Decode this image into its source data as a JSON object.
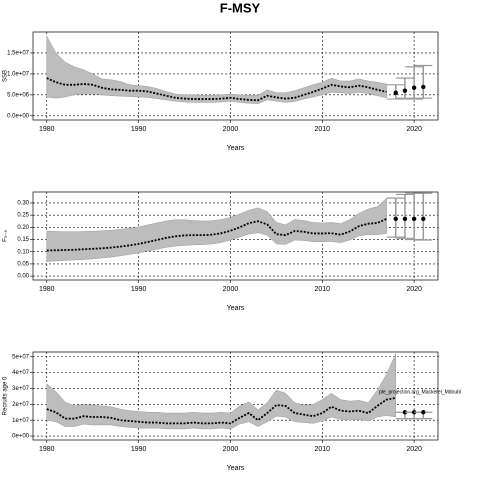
{
  "title": "F-MSY",
  "chart_data": [
    {
      "type": "line",
      "ylabel": "SSB",
      "xlabel": "Years",
      "grid": true,
      "color": "#000000",
      "band_color": "#bdbdbd",
      "xlim": [
        1978.5,
        2022.6
      ],
      "xticks": [
        1980,
        1990,
        2000,
        2010,
        2020
      ],
      "ylim": [
        -1000000.0,
        20000000.0
      ],
      "yticks": [
        {
          "value": 0,
          "label": "0.0e+00"
        },
        {
          "value": 5000000.0,
          "label": "5.0e+06"
        },
        {
          "value": 10000000.0,
          "label": "1.0e+07"
        },
        {
          "value": 15000000.0,
          "label": "1.5e+07"
        }
      ],
      "x": [
        1980,
        1981,
        1982,
        1983,
        1984,
        1985,
        1986,
        1987,
        1988,
        1989,
        1990,
        1991,
        1992,
        1993,
        1994,
        1995,
        1996,
        1997,
        1998,
        1999,
        2000,
        2001,
        2002,
        2003,
        2004,
        2005,
        2006,
        2007,
        2008,
        2009,
        2010,
        2011,
        2012,
        2013,
        2014,
        2015,
        2016,
        2017
      ],
      "values": [
        9000000.0,
        8000000.0,
        7400000.0,
        7400000.0,
        7600000.0,
        7400000.0,
        6700000.0,
        6300000.0,
        6200000.0,
        6000000.0,
        6000000.0,
        5800000.0,
        5300000.0,
        4800000.0,
        4300000.0,
        4100000.0,
        4000000.0,
        4000000.0,
        4000000.0,
        4100000.0,
        4300000.0,
        4000000.0,
        3800000.0,
        3700000.0,
        4800000.0,
        4400000.0,
        4100000.0,
        4300000.0,
        5000000.0,
        5700000.0,
        6500000.0,
        7400000.0,
        7000000.0,
        6800000.0,
        7200000.0,
        6800000.0,
        6200000.0,
        5700000.0
      ],
      "upper": [
        19000000.0,
        15000000.0,
        12800000.0,
        11700000.0,
        11000000.0,
        10000000.0,
        8800000.0,
        8600000.0,
        8200000.0,
        7400000.0,
        7200000.0,
        7000000.0,
        6500000.0,
        5800000.0,
        5200000.0,
        5000000.0,
        5000000.0,
        4900000.0,
        4900000.0,
        5000000.0,
        5200000.0,
        5000000.0,
        4900000.0,
        4900000.0,
        6200000.0,
        5500000.0,
        5500000.0,
        6000000.0,
        6700000.0,
        7400000.0,
        8000000.0,
        9000000.0,
        8300000.0,
        8300000.0,
        8800000.0,
        8300000.0,
        8000000.0,
        7600000.0
      ],
      "lower": [
        4500000.0,
        4200000.0,
        4500000.0,
        5000000.0,
        5200000.0,
        5200000.0,
        5000000.0,
        4800000.0,
        4700000.0,
        4600000.0,
        4500000.0,
        4400000.0,
        4100000.0,
        3800000.0,
        3500000.0,
        3300000.0,
        3200000.0,
        3200000.0,
        3200000.0,
        3300000.0,
        3500000.0,
        3200000.0,
        3000000.0,
        2900000.0,
        3800000.0,
        3500000.0,
        3200000.0,
        3400000.0,
        4000000.0,
        4500000.0,
        5000000.0,
        5600000.0,
        5500000.0,
        5300000.0,
        5600000.0,
        5300000.0,
        4800000.0,
        4300000.0
      ],
      "forecast": {
        "x": [
          2018,
          2019,
          2020,
          2021
        ],
        "values": [
          5500000.0,
          6000000.0,
          6700000.0,
          6900000.0
        ],
        "lower": [
          4000000.0,
          4200000.0,
          4000000.0,
          4200000.0
        ],
        "upper": [
          7400000.0,
          9000000.0,
          11700000.0,
          12000000.0
        ]
      }
    },
    {
      "type": "line",
      "ylabel": "F₃₋₈",
      "xlabel": "Years",
      "grid": true,
      "color": "#000000",
      "band_color": "#bdbdbd",
      "xlim": [
        1978.5,
        2022.6
      ],
      "xticks": [
        1980,
        1990,
        2000,
        2010,
        2020
      ],
      "ylim": [
        -0.016,
        0.345
      ],
      "yticks": [
        {
          "value": 0,
          "label": "0.00"
        },
        {
          "value": 0.05,
          "label": "0.05"
        },
        {
          "value": 0.1,
          "label": "0.10"
        },
        {
          "value": 0.15,
          "label": "0.15"
        },
        {
          "value": 0.2,
          "label": "0.20"
        },
        {
          "value": 0.25,
          "label": "0.25"
        },
        {
          "value": 0.3,
          "label": "0.30"
        }
      ],
      "x": [
        1980,
        1981,
        1982,
        1983,
        1984,
        1985,
        1986,
        1987,
        1988,
        1989,
        1990,
        1991,
        1992,
        1993,
        1994,
        1995,
        1996,
        1997,
        1998,
        1999,
        2000,
        2001,
        2002,
        2003,
        2004,
        2005,
        2006,
        2007,
        2008,
        2009,
        2010,
        2011,
        2012,
        2013,
        2014,
        2015,
        2016,
        2017
      ],
      "values": [
        0.105,
        0.106,
        0.107,
        0.108,
        0.11,
        0.112,
        0.114,
        0.117,
        0.121,
        0.126,
        0.132,
        0.14,
        0.148,
        0.157,
        0.163,
        0.167,
        0.168,
        0.168,
        0.17,
        0.176,
        0.186,
        0.2,
        0.217,
        0.225,
        0.212,
        0.172,
        0.168,
        0.185,
        0.182,
        0.175,
        0.175,
        0.176,
        0.17,
        0.183,
        0.205,
        0.215,
        0.218,
        0.235
      ],
      "upper": [
        0.185,
        0.183,
        0.182,
        0.182,
        0.183,
        0.184,
        0.186,
        0.188,
        0.192,
        0.196,
        0.202,
        0.21,
        0.218,
        0.226,
        0.231,
        0.231,
        0.228,
        0.226,
        0.227,
        0.232,
        0.24,
        0.255,
        0.27,
        0.28,
        0.265,
        0.22,
        0.21,
        0.232,
        0.228,
        0.22,
        0.218,
        0.22,
        0.215,
        0.232,
        0.258,
        0.275,
        0.285,
        0.32
      ],
      "lower": [
        0.06,
        0.062,
        0.064,
        0.066,
        0.068,
        0.071,
        0.074,
        0.078,
        0.083,
        0.089,
        0.095,
        0.103,
        0.11,
        0.118,
        0.123,
        0.126,
        0.128,
        0.129,
        0.132,
        0.138,
        0.148,
        0.16,
        0.172,
        0.178,
        0.168,
        0.132,
        0.13,
        0.148,
        0.146,
        0.141,
        0.141,
        0.142,
        0.137,
        0.148,
        0.165,
        0.17,
        0.17,
        0.175
      ],
      "forecast": {
        "x": [
          2018,
          2019,
          2020,
          2021
        ],
        "values": [
          0.235,
          0.235,
          0.235,
          0.235
        ],
        "lower": [
          0.16,
          0.155,
          0.15,
          0.148
        ],
        "upper": [
          0.32,
          0.335,
          0.34,
          0.34
        ]
      }
    },
    {
      "type": "line",
      "ylabel": "Recruits age 0",
      "xlabel": "Years",
      "grid": true,
      "color": "#000000",
      "band_color": "#bdbdbd",
      "annotation": "ple_projection.org_Mackerel_Mdoubl",
      "xlim": [
        1978.5,
        2022.6
      ],
      "xticks": [
        1980,
        1990,
        2000,
        2010,
        2020
      ],
      "ylim": [
        -2500000.0,
        53000000.0
      ],
      "yticks": [
        {
          "value": 0,
          "label": "0e+00"
        },
        {
          "value": 10000000.0,
          "label": "1e+07"
        },
        {
          "value": 20000000.0,
          "label": "2e+07"
        },
        {
          "value": 30000000.0,
          "label": "3e+07"
        },
        {
          "value": 40000000.0,
          "label": "4e+07"
        },
        {
          "value": 50000000.0,
          "label": "5e+07"
        }
      ],
      "x": [
        1980,
        1981,
        1982,
        1983,
        1984,
        1985,
        1986,
        1987,
        1988,
        1989,
        1990,
        1991,
        1992,
        1993,
        1994,
        1995,
        1996,
        1997,
        1998,
        1999,
        2000,
        2001,
        2002,
        2003,
        2004,
        2005,
        2006,
        2007,
        2008,
        2009,
        2010,
        2011,
        2012,
        2013,
        2014,
        2015,
        2016,
        2017,
        2018
      ],
      "values": [
        17000000.0,
        15000000.0,
        11000000.0,
        11000000.0,
        12500000.0,
        12000000.0,
        12000000.0,
        11500000.0,
        10000000.0,
        9500000.0,
        9000000.0,
        8500000.0,
        8500000.0,
        8000000.0,
        8000000.0,
        8000000.0,
        8500000.0,
        8000000.0,
        8000000.0,
        8500000.0,
        8000000.0,
        11500000.0,
        14500000.0,
        10000000.0,
        14500000.0,
        19500000.0,
        19000000.0,
        14500000.0,
        13500000.0,
        12500000.0,
        14500000.0,
        18500000.0,
        16000000.0,
        15500000.0,
        16000000.0,
        14500000.0,
        19000000.0,
        23000000.0,
        24000000.0
      ],
      "upper": [
        33000000.0,
        28000000.0,
        21500000.0,
        19000000.0,
        20000000.0,
        19500000.0,
        19000000.0,
        18500000.0,
        17000000.0,
        16000000.0,
        15500000.0,
        15000000.0,
        15000000.0,
        14500000.0,
        14500000.0,
        14500000.0,
        15000000.0,
        14500000.0,
        14500000.0,
        15000000.0,
        14500000.0,
        19000000.0,
        21500000.0,
        16500000.0,
        21000000.0,
        29000000.0,
        27000000.0,
        21000000.0,
        19500000.0,
        20000000.0,
        23000000.0,
        27000000.0,
        23000000.0,
        22000000.0,
        22500000.0,
        21000000.0,
        29000000.0,
        39000000.0,
        52000000.0
      ],
      "lower": [
        10000000.0,
        9000000.0,
        6000000.0,
        6000000.0,
        7500000.0,
        7000000.0,
        7000000.0,
        7000000.0,
        6000000.0,
        5500000.0,
        5000000.0,
        5000000.0,
        5000000.0,
        4500000.0,
        4500000.0,
        4500000.0,
        5000000.0,
        4500000.0,
        4500000.0,
        5000000.0,
        4500000.0,
        7500000.0,
        9000000.0,
        6000000.0,
        9000000.0,
        12500000.0,
        12000000.0,
        9000000.0,
        8500000.0,
        8000000.0,
        9500000.0,
        12000000.0,
        10500000.0,
        10000000.0,
        10500000.0,
        9500000.0,
        12000000.0,
        13000000.0,
        12000000.0
      ],
      "forecast": {
        "x": [
          2019,
          2020,
          2021
        ],
        "values": [
          15000000.0,
          15000000.0,
          15000000.0
        ],
        "lower": [
          11000000.0,
          11000000.0,
          11000000.0
        ],
        "upper": [
          15000000.0,
          15000000.0,
          15000000.0
        ]
      }
    }
  ]
}
